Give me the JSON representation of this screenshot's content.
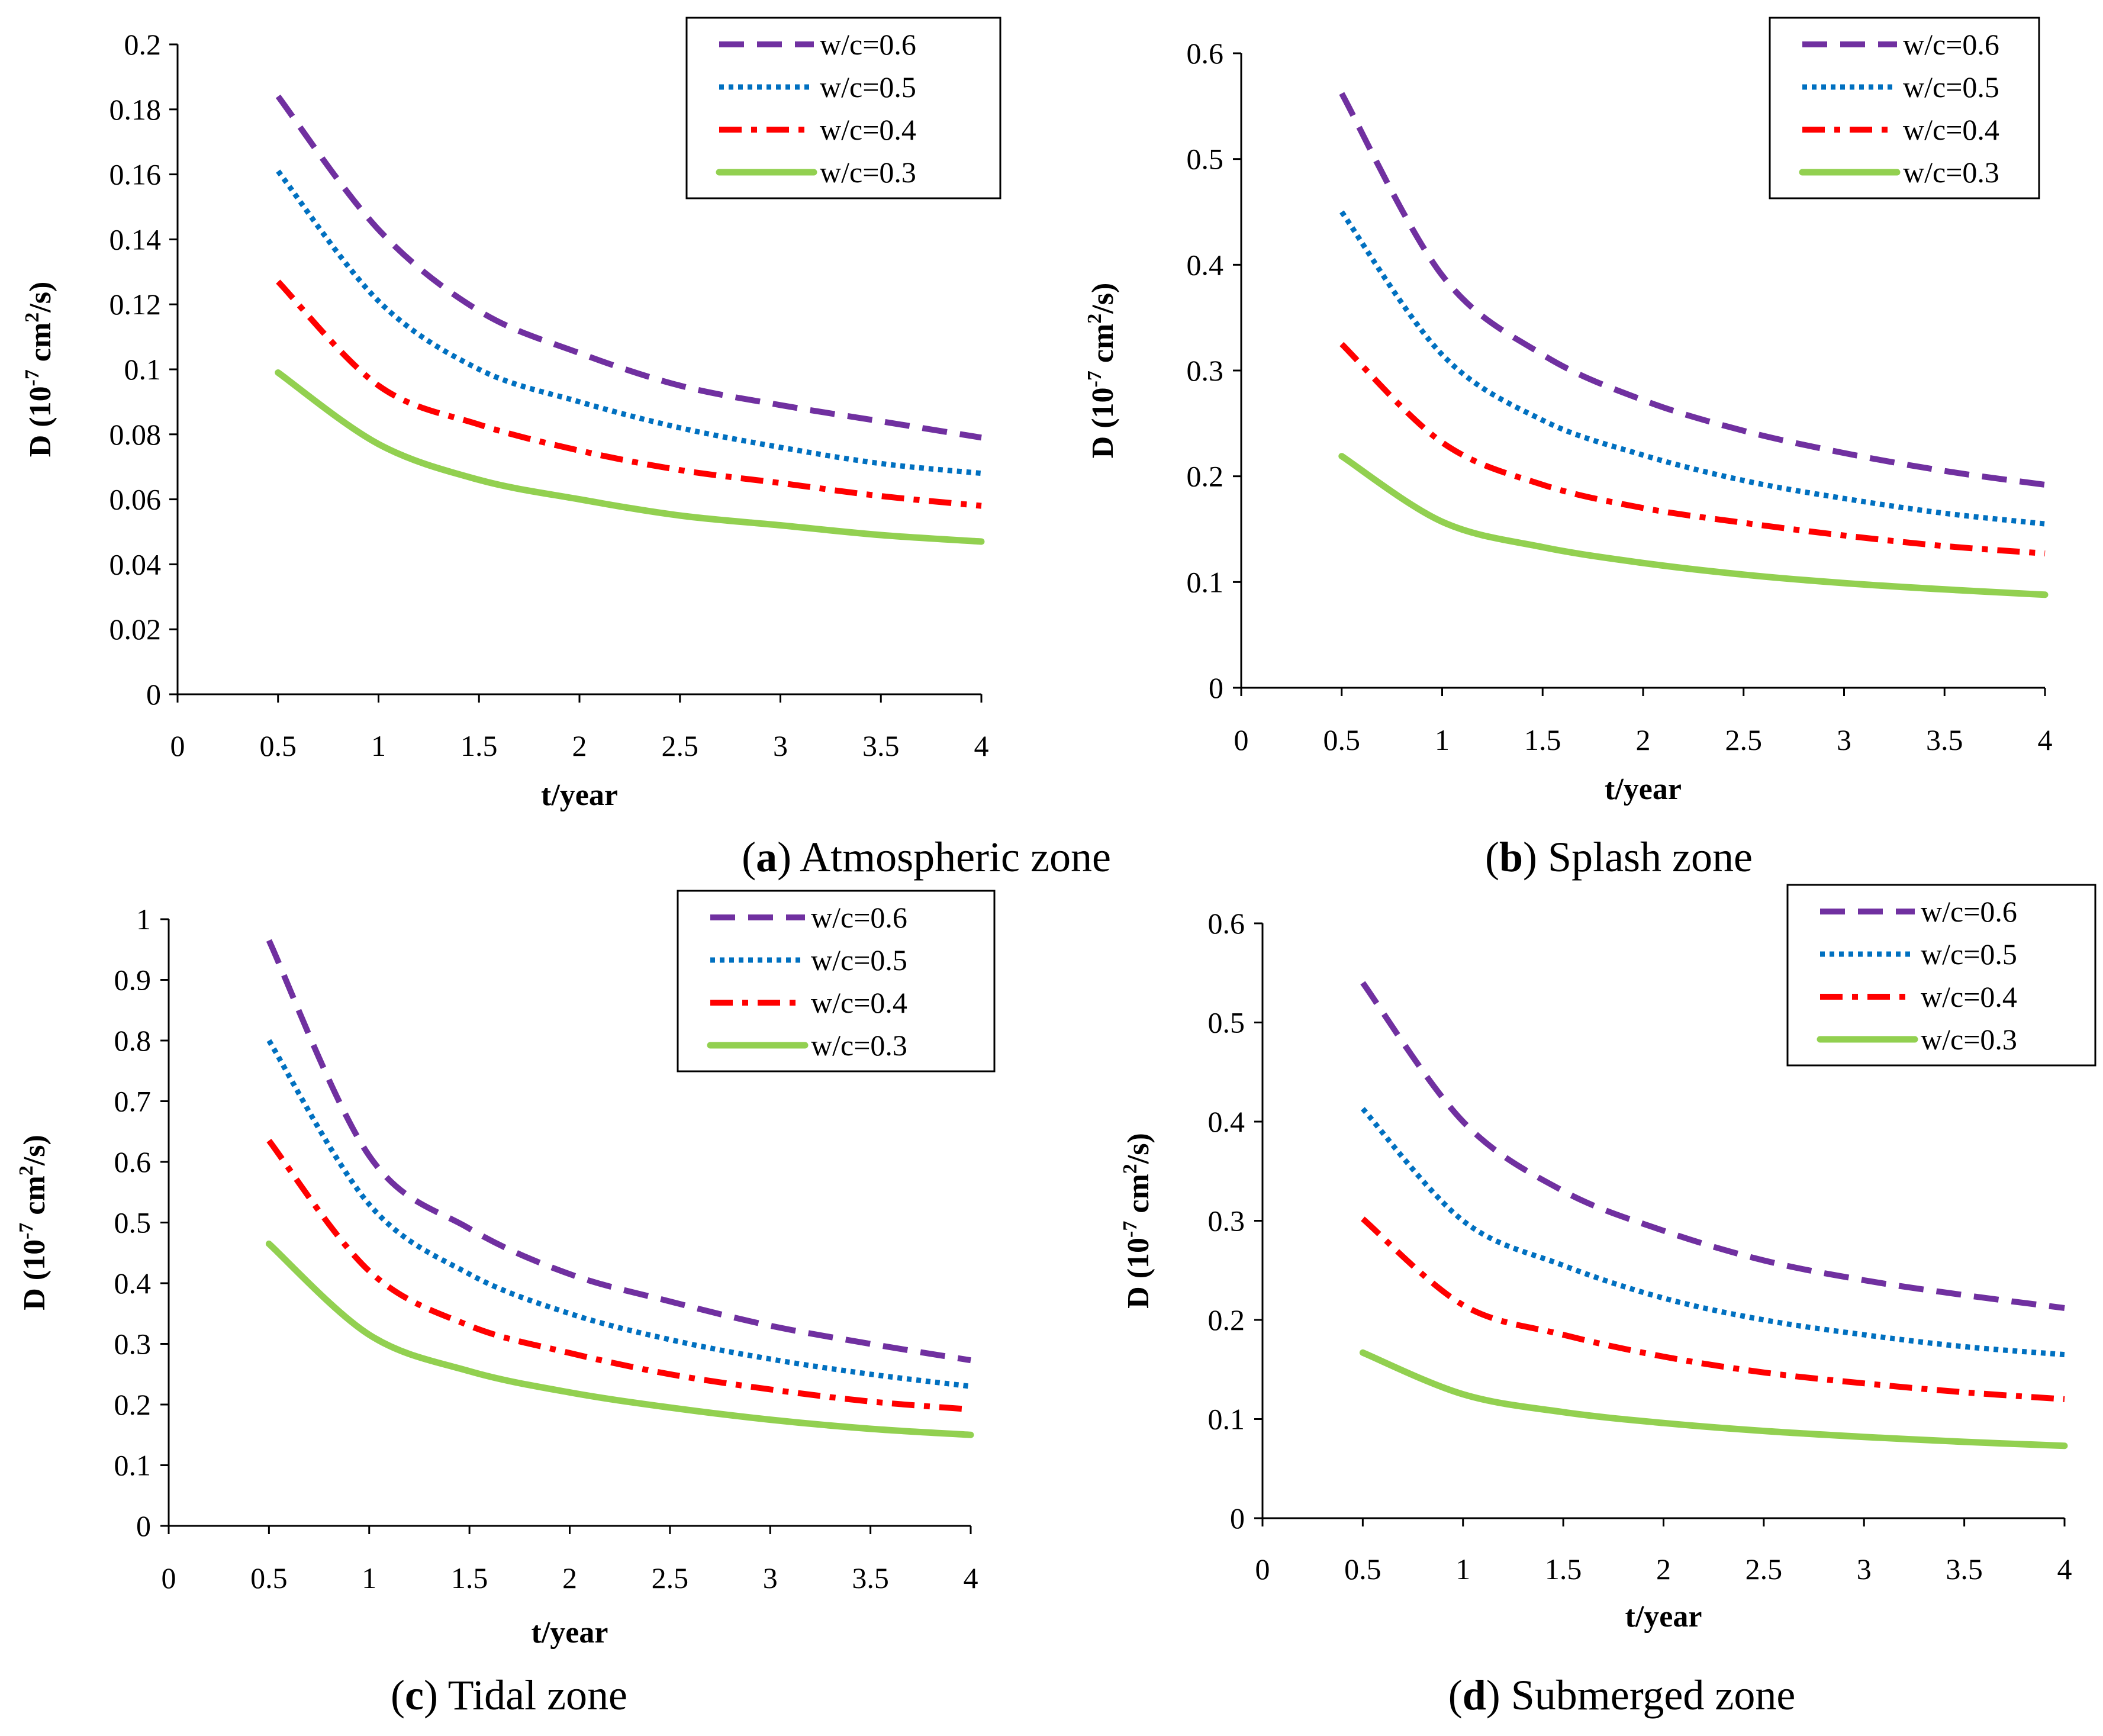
{
  "colors": {
    "wc06": "#7030A0",
    "wc05": "#0070C0",
    "wc04": "#FF0000",
    "wc03": "#92D050",
    "axis": "#000000"
  },
  "chart_data": [
    {
      "type": "line",
      "caption_letter": "a",
      "caption_text": " Atmospheric zone",
      "xlabel": "t/year",
      "ylabel": "D (10⁻⁷ cm²/s)",
      "ylabel_parts": [
        "D (10",
        "-7",
        " cm",
        "2",
        "/s)"
      ],
      "xlim": [
        0,
        4
      ],
      "ylim": [
        0,
        0.2
      ],
      "xticks": [
        "0",
        "0.5",
        "1",
        "1.5",
        "2",
        "2.5",
        "3",
        "3.5",
        "4"
      ],
      "yticks": [
        "0",
        "0.02",
        "0.04",
        "0.06",
        "0.08",
        "0.1",
        "0.12",
        "0.14",
        "0.16",
        "0.18",
        "0.2"
      ],
      "legend": "top-right",
      "series": [
        {
          "name": "w/c=0.6",
          "color_key": "wc06",
          "style": "dash",
          "x": [
            0.5,
            1,
            1.5,
            2,
            2.5,
            3,
            3.5,
            4
          ],
          "values": [
            0.184,
            0.143,
            0.118,
            0.105,
            0.095,
            0.089,
            0.084,
            0.079
          ]
        },
        {
          "name": "w/c=0.5",
          "color_key": "wc05",
          "style": "dot",
          "x": [
            0.5,
            1,
            1.5,
            2,
            2.5,
            3,
            3.5,
            4
          ],
          "values": [
            0.161,
            0.121,
            0.1,
            0.09,
            0.082,
            0.076,
            0.071,
            0.068
          ]
        },
        {
          "name": "w/c=0.4",
          "color_key": "wc04",
          "style": "dashdot",
          "x": [
            0.5,
            1,
            1.5,
            2,
            2.5,
            3,
            3.5,
            4
          ],
          "values": [
            0.127,
            0.095,
            0.083,
            0.075,
            0.069,
            0.065,
            0.061,
            0.058
          ]
        },
        {
          "name": "w/c=0.3",
          "color_key": "wc03",
          "style": "solid",
          "x": [
            0.5,
            1,
            1.5,
            2,
            2.5,
            3,
            3.5,
            4
          ],
          "values": [
            0.099,
            0.077,
            0.066,
            0.06,
            0.055,
            0.052,
            0.049,
            0.047
          ]
        }
      ]
    },
    {
      "type": "line",
      "caption_letter": "b",
      "caption_text": " Splash zone",
      "xlabel": "t/year",
      "ylabel": "D (10⁻⁷ cm²/s)",
      "ylabel_parts": [
        "D (10",
        "-7",
        " cm",
        "2",
        "/s)"
      ],
      "xlim": [
        0,
        4
      ],
      "ylim": [
        0,
        0.6
      ],
      "xticks": [
        "0",
        "0.5",
        "1",
        "1.5",
        "2",
        "2.5",
        "3",
        "3.5",
        "4"
      ],
      "yticks": [
        "0",
        "0.1",
        "0.2",
        "0.3",
        "0.4",
        "0.5",
        "0.6"
      ],
      "legend": "top-right",
      "series": [
        {
          "name": "w/c=0.6",
          "color_key": "wc06",
          "style": "dash",
          "x": [
            0.5,
            1,
            1.5,
            2,
            2.5,
            3,
            3.5,
            4
          ],
          "values": [
            0.562,
            0.39,
            0.315,
            0.272,
            0.243,
            0.222,
            0.205,
            0.192
          ]
        },
        {
          "name": "w/c=0.5",
          "color_key": "wc05",
          "style": "dot",
          "x": [
            0.5,
            1,
            1.5,
            2,
            2.5,
            3,
            3.5,
            4
          ],
          "values": [
            0.45,
            0.315,
            0.253,
            0.22,
            0.196,
            0.179,
            0.165,
            0.155
          ]
        },
        {
          "name": "w/c=0.4",
          "color_key": "wc04",
          "style": "dashdot",
          "x": [
            0.5,
            1,
            1.5,
            2,
            2.5,
            3,
            3.5,
            4
          ],
          "values": [
            0.325,
            0.232,
            0.192,
            0.17,
            0.156,
            0.144,
            0.134,
            0.127
          ]
        },
        {
          "name": "w/c=0.3",
          "color_key": "wc03",
          "style": "solid",
          "x": [
            0.5,
            1,
            1.5,
            2,
            2.5,
            3,
            3.5,
            4
          ],
          "values": [
            0.219,
            0.157,
            0.133,
            0.118,
            0.107,
            0.099,
            0.093,
            0.088
          ]
        }
      ]
    },
    {
      "type": "line",
      "caption_letter": "c",
      "caption_text": " Tidal zone",
      "xlabel": "t/year",
      "ylabel": "D (10⁻⁷ cm²/s)",
      "ylabel_parts": [
        "D (10",
        "-7",
        " cm",
        "2",
        "/s)"
      ],
      "xlim": [
        0,
        4
      ],
      "ylim": [
        0,
        1
      ],
      "xticks": [
        "0",
        "0.5",
        "1",
        "1.5",
        "2",
        "2.5",
        "3",
        "3.5",
        "4"
      ],
      "yticks": [
        "0",
        "0.1",
        "0.2",
        "0.3",
        "0.4",
        "0.5",
        "0.6",
        "0.7",
        "0.8",
        "0.9",
        "1"
      ],
      "legend": "top-right",
      "series": [
        {
          "name": "w/c=0.6",
          "color_key": "wc06",
          "style": "dash",
          "x": [
            0.5,
            1,
            1.5,
            2,
            2.5,
            3,
            3.5,
            4
          ],
          "values": [
            0.965,
            0.61,
            0.49,
            0.415,
            0.37,
            0.33,
            0.3,
            0.273
          ]
        },
        {
          "name": "w/c=0.5",
          "color_key": "wc05",
          "style": "dot",
          "x": [
            0.5,
            1,
            1.5,
            2,
            2.5,
            3,
            3.5,
            4
          ],
          "values": [
            0.8,
            0.53,
            0.415,
            0.35,
            0.307,
            0.275,
            0.25,
            0.23
          ]
        },
        {
          "name": "w/c=0.4",
          "color_key": "wc04",
          "style": "dashdot",
          "x": [
            0.5,
            1,
            1.5,
            2,
            2.5,
            3,
            3.5,
            4
          ],
          "values": [
            0.635,
            0.42,
            0.33,
            0.285,
            0.25,
            0.225,
            0.205,
            0.192
          ]
        },
        {
          "name": "w/c=0.3",
          "color_key": "wc03",
          "style": "solid",
          "x": [
            0.5,
            1,
            1.5,
            2,
            2.5,
            3,
            3.5,
            4
          ],
          "values": [
            0.465,
            0.315,
            0.255,
            0.22,
            0.195,
            0.175,
            0.16,
            0.15
          ]
        }
      ]
    },
    {
      "type": "line",
      "caption_letter": "d",
      "caption_text": " Submerged zone",
      "xlabel": "t/year",
      "ylabel": "D (10⁻⁷ cm²/s)",
      "ylabel_parts": [
        "D (10",
        "-7",
        " cm",
        "2",
        "/s)"
      ],
      "xlim": [
        0,
        4
      ],
      "ylim": [
        0,
        0.6
      ],
      "xticks": [
        "0",
        "0.5",
        "1",
        "1.5",
        "2",
        "2.5",
        "3",
        "3.5",
        "4"
      ],
      "yticks": [
        "0",
        "0.1",
        "0.2",
        "0.3",
        "0.4",
        "0.5",
        "0.6"
      ],
      "legend": "top-right",
      "series": [
        {
          "name": "w/c=0.6",
          "color_key": "wc06",
          "style": "dash",
          "x": [
            0.5,
            1,
            1.5,
            2,
            2.5,
            3,
            3.5,
            4
          ],
          "values": [
            0.54,
            0.4,
            0.33,
            0.29,
            0.26,
            0.24,
            0.225,
            0.212
          ]
        },
        {
          "name": "w/c=0.5",
          "color_key": "wc05",
          "style": "dot",
          "x": [
            0.5,
            1,
            1.5,
            2,
            2.5,
            3,
            3.5,
            4
          ],
          "values": [
            0.413,
            0.3,
            0.255,
            0.222,
            0.2,
            0.185,
            0.173,
            0.165
          ]
        },
        {
          "name": "w/c=0.4",
          "color_key": "wc04",
          "style": "dashdot",
          "x": [
            0.5,
            1,
            1.5,
            2,
            2.5,
            3,
            3.5,
            4
          ],
          "values": [
            0.302,
            0.215,
            0.185,
            0.163,
            0.147,
            0.136,
            0.127,
            0.12
          ]
        },
        {
          "name": "w/c=0.3",
          "color_key": "wc03",
          "style": "solid",
          "x": [
            0.5,
            1,
            1.5,
            2,
            2.5,
            3,
            3.5,
            4
          ],
          "values": [
            0.167,
            0.125,
            0.107,
            0.096,
            0.088,
            0.082,
            0.077,
            0.073
          ]
        }
      ]
    }
  ]
}
